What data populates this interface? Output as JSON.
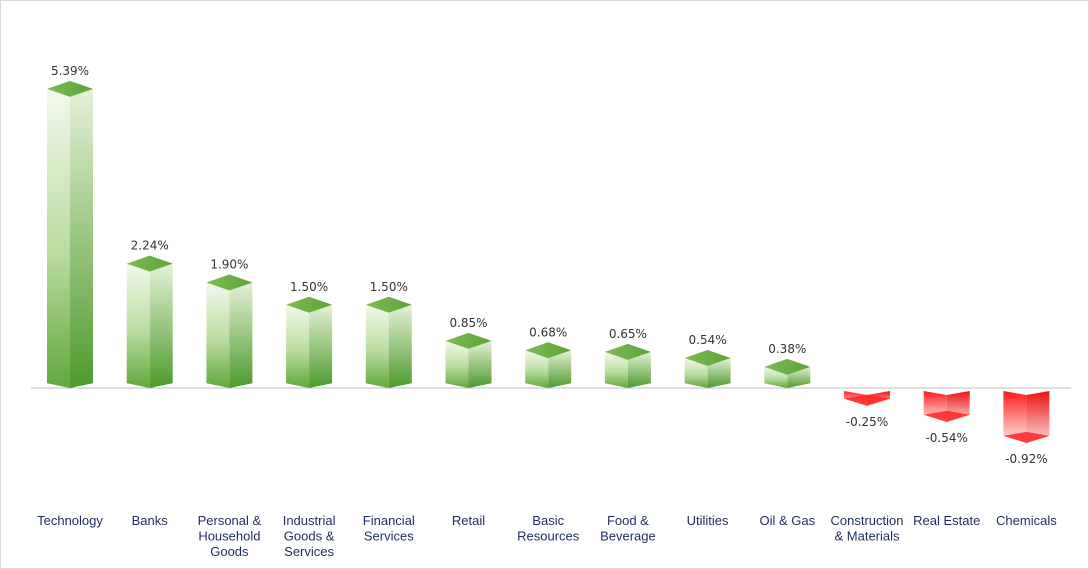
{
  "chart_data": {
    "type": "bar",
    "title": "",
    "xlabel": "",
    "ylabel": "",
    "categories": [
      [
        "Technology"
      ],
      [
        "Banks"
      ],
      [
        "Personal &",
        "Household",
        "Goods"
      ],
      [
        "Industrial",
        "Goods &",
        "Services"
      ],
      [
        "Financial",
        "Services"
      ],
      [
        "Retail"
      ],
      [
        "Basic",
        "Resources"
      ],
      [
        "Food &",
        "Beverage"
      ],
      [
        "Utilities"
      ],
      [
        "Oil & Gas"
      ],
      [
        "Construction",
        "& Materials"
      ],
      [
        "Real Estate"
      ],
      [
        "Chemicals"
      ]
    ],
    "values": [
      5.39,
      2.24,
      1.9,
      1.5,
      1.5,
      0.85,
      0.68,
      0.65,
      0.54,
      0.38,
      -0.25,
      -0.54,
      -0.92
    ],
    "value_labels": [
      "5.39%",
      "2.24%",
      "1.90%",
      "1.50%",
      "1.50%",
      "0.85%",
      "0.68%",
      "0.65%",
      "0.54%",
      "0.38%",
      "-0.25%",
      "-0.54%",
      "-0.92%"
    ],
    "ylim": [
      -1.0,
      5.5
    ],
    "grid": false,
    "legend": "none",
    "colors": {
      "positive_dark": "#62a83c",
      "positive_light": "#e6f2dc",
      "negative_dark": "#ff1a1a",
      "negative_light": "#fbe0e0",
      "baseline": "#bfbfbf"
    }
  }
}
